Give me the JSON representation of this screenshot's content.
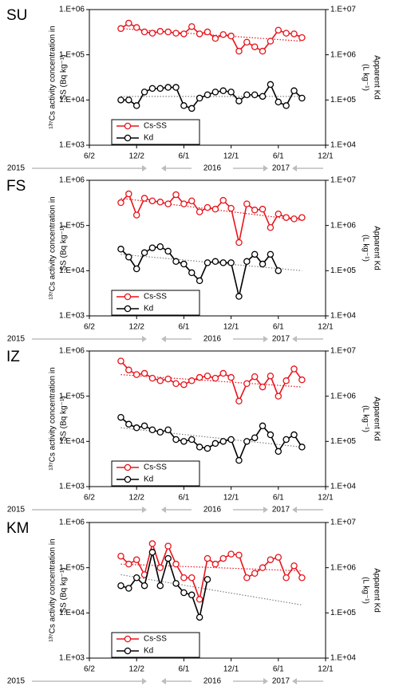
{
  "chart_data": [
    {
      "type": "line",
      "title": "SU",
      "y_label": [
        "¹³⁷Cs activity concentration in",
        "SS (Bq kg⁻¹)"
      ],
      "y2_label": [
        "Apparent Kd",
        "(L kg⁻¹)"
      ],
      "year_labels": [
        "2015",
        "2016",
        "2017"
      ],
      "x": [
        4,
        5,
        6,
        7,
        8,
        9,
        10,
        11,
        12,
        13,
        14,
        15,
        16,
        17,
        18,
        19,
        20,
        21,
        22,
        23,
        24,
        25,
        26,
        27
      ],
      "xlim": [
        0,
        30
      ],
      "xticks": [
        {
          "value": 0,
          "label": "6/2"
        },
        {
          "value": 6,
          "label": "12/2"
        },
        {
          "value": 12,
          "label": "6/1"
        },
        {
          "value": 18,
          "label": "12/1"
        },
        {
          "value": 24,
          "label": "6/1"
        },
        {
          "value": 30,
          "label": "12/1"
        }
      ],
      "log_scale": true,
      "ylim": [
        1000,
        1000000
      ],
      "yticks": [
        {
          "value": 1000,
          "label": "1.E+03"
        },
        {
          "value": 10000,
          "label": "1.E+04"
        },
        {
          "value": 100000,
          "label": "1.E+05"
        },
        {
          "value": 1000000,
          "label": "1.E+06"
        }
      ],
      "y2lim": [
        10000,
        10000000
      ],
      "y2ticks": [
        {
          "value": 10000,
          "label": "1.E+04"
        },
        {
          "value": 100000,
          "label": "1.E+05"
        },
        {
          "value": 1000000,
          "label": "1.E+06"
        },
        {
          "value": 10000000,
          "label": "1.E+07"
        }
      ],
      "legend": "lower left",
      "series": [
        {
          "name": "Cs-SS",
          "color": "#e8141b",
          "values": [
            380000,
            500000,
            400000,
            320000,
            300000,
            330000,
            320000,
            300000,
            290000,
            420000,
            290000,
            320000,
            230000,
            280000,
            260000,
            120000,
            190000,
            150000,
            120000,
            200000,
            350000,
            300000,
            290000,
            240000
          ]
        },
        {
          "name": "Kd",
          "color": "#000000",
          "axis": "y2",
          "values": [
            100000,
            100000,
            75000,
            150000,
            180000,
            180000,
            190000,
            190000,
            75000,
            65000,
            110000,
            130000,
            150000,
            160000,
            150000,
            95000,
            130000,
            130000,
            120000,
            220000,
            90000,
            75000,
            160000,
            110000
          ]
        }
      ],
      "trends": [
        {
          "axis": "y",
          "color": "#e8141b",
          "x": [
            4,
            27
          ],
          "values": [
            380000,
            200000
          ]
        },
        {
          "axis": "y2",
          "color": "#808080",
          "x": [
            4,
            27
          ],
          "values": [
            120000,
            120000
          ]
        }
      ]
    },
    {
      "type": "line",
      "title": "FS",
      "y_label": [
        "¹³⁷Cs activity concentration in",
        "SS (Bq kg⁻¹)"
      ],
      "y2_label": [
        "Apparent Kd",
        "(L kg⁻¹)"
      ],
      "year_labels": [
        "2015",
        "2016",
        "2017"
      ],
      "x": [
        4,
        5,
        6,
        7,
        8,
        9,
        10,
        11,
        12,
        13,
        14,
        15,
        16,
        17,
        18,
        19,
        20,
        21,
        22,
        23,
        24,
        25,
        26,
        27
      ],
      "xlim": [
        0,
        30
      ],
      "xticks": [
        {
          "value": 0,
          "label": "6/2"
        },
        {
          "value": 6,
          "label": "12/2"
        },
        {
          "value": 12,
          "label": "6/1"
        },
        {
          "value": 18,
          "label": "12/1"
        },
        {
          "value": 24,
          "label": "6/1"
        },
        {
          "value": 30,
          "label": "12/1"
        }
      ],
      "log_scale": true,
      "ylim": [
        1000,
        1000000
      ],
      "yticks": [
        {
          "value": 1000,
          "label": "1.E+03"
        },
        {
          "value": 10000,
          "label": "1.E+04"
        },
        {
          "value": 100000,
          "label": "1.E+05"
        },
        {
          "value": 1000000,
          "label": "1.E+06"
        }
      ],
      "y2lim": [
        10000,
        10000000
      ],
      "y2ticks": [
        {
          "value": 10000,
          "label": "1.E+04"
        },
        {
          "value": 100000,
          "label": "1.E+05"
        },
        {
          "value": 1000000,
          "label": "1.E+06"
        },
        {
          "value": 10000000,
          "label": "1.E+07"
        }
      ],
      "legend": "lower left",
      "series": [
        {
          "name": "Cs-SS",
          "color": "#e8141b",
          "values": [
            320000,
            500000,
            170000,
            400000,
            350000,
            330000,
            300000,
            480000,
            300000,
            350000,
            200000,
            250000,
            230000,
            360000,
            240000,
            42000,
            300000,
            220000,
            230000,
            90000,
            180000,
            150000,
            140000,
            150000
          ]
        },
        {
          "name": "Kd",
          "color": "#000000",
          "axis": "y2",
          "values": [
            300000,
            200000,
            110000,
            250000,
            320000,
            340000,
            270000,
            160000,
            140000,
            90000,
            60000,
            150000,
            160000,
            150000,
            150000,
            27000,
            160000,
            230000,
            140000,
            230000,
            100000,
            null,
            null,
            null
          ]
        }
      ],
      "trends": [
        {
          "axis": "y",
          "color": "#e8141b",
          "x": [
            4,
            27
          ],
          "values": [
            400000,
            130000
          ]
        },
        {
          "axis": "y2",
          "color": "#808080",
          "x": [
            4,
            27
          ],
          "values": [
            230000,
            100000
          ]
        }
      ]
    },
    {
      "type": "line",
      "title": "IZ",
      "y_label": [
        "¹³⁷Cs activity concentration in",
        "SS (Bq kg⁻¹)"
      ],
      "y2_label": [
        "Apparent Kd",
        "(L kg⁻¹)"
      ],
      "year_labels": [
        "2015",
        "2016",
        "2017"
      ],
      "x": [
        4,
        5,
        6,
        7,
        8,
        9,
        10,
        11,
        12,
        13,
        14,
        15,
        16,
        17,
        18,
        19,
        20,
        21,
        22,
        23,
        24,
        25,
        26,
        27
      ],
      "xlim": [
        0,
        30
      ],
      "xticks": [
        {
          "value": 0,
          "label": "6/2"
        },
        {
          "value": 6,
          "label": "12/2"
        },
        {
          "value": 12,
          "label": "6/1"
        },
        {
          "value": 18,
          "label": "12/1"
        },
        {
          "value": 24,
          "label": "6/1"
        },
        {
          "value": 30,
          "label": "12/1"
        }
      ],
      "log_scale": true,
      "ylim": [
        1000,
        1000000
      ],
      "yticks": [
        {
          "value": 1000,
          "label": "1.E+03"
        },
        {
          "value": 10000,
          "label": "1.E+04"
        },
        {
          "value": 100000,
          "label": "1.E+05"
        },
        {
          "value": 1000000,
          "label": "1.E+06"
        }
      ],
      "y2lim": [
        10000,
        10000000
      ],
      "y2ticks": [
        {
          "value": 10000,
          "label": "1.E+04"
        },
        {
          "value": 100000,
          "label": "1.E+05"
        },
        {
          "value": 1000000,
          "label": "1.E+06"
        },
        {
          "value": 10000000,
          "label": "1.E+07"
        }
      ],
      "legend": "lower left",
      "series": [
        {
          "name": "Cs-SS",
          "color": "#e8141b",
          "values": [
            600000,
            380000,
            300000,
            320000,
            250000,
            220000,
            240000,
            190000,
            180000,
            220000,
            260000,
            280000,
            250000,
            320000,
            260000,
            78000,
            190000,
            270000,
            160000,
            280000,
            100000,
            220000,
            400000,
            230000
          ]
        },
        {
          "name": "Kd",
          "color": "#000000",
          "axis": "y2",
          "values": [
            340000,
            240000,
            200000,
            220000,
            180000,
            160000,
            180000,
            110000,
            100000,
            110000,
            75000,
            70000,
            90000,
            100000,
            110000,
            38000,
            100000,
            120000,
            220000,
            140000,
            60000,
            110000,
            140000,
            75000
          ]
        }
      ],
      "trends": [
        {
          "axis": "y",
          "color": "#e8141b",
          "x": [
            4,
            27
          ],
          "values": [
            300000,
            160000
          ]
        },
        {
          "axis": "y2",
          "color": "#808080",
          "x": [
            4,
            27
          ],
          "values": [
            200000,
            75000
          ]
        }
      ]
    },
    {
      "type": "line",
      "title": "KM",
      "y_label": [
        "¹³⁷Cs activity concentration in",
        "SS (Bq kg⁻¹)"
      ],
      "y2_label": [
        "Apparent Kd",
        "(L kg⁻¹)"
      ],
      "year_labels": [
        "2015",
        "2016",
        "2017"
      ],
      "x": [
        4,
        5,
        6,
        7,
        8,
        9,
        10,
        11,
        12,
        13,
        14,
        15,
        16,
        17,
        18,
        19,
        20,
        21,
        22,
        23,
        24,
        25,
        26,
        27
      ],
      "xlim": [
        0,
        30
      ],
      "xticks": [
        {
          "value": 0,
          "label": "6/2"
        },
        {
          "value": 6,
          "label": "12/2"
        },
        {
          "value": 12,
          "label": "6/1"
        },
        {
          "value": 18,
          "label": "12/1"
        },
        {
          "value": 24,
          "label": "6/1"
        },
        {
          "value": 30,
          "label": "12/1"
        }
      ],
      "log_scale": true,
      "ylim": [
        1000,
        1000000
      ],
      "yticks": [
        {
          "value": 1000,
          "label": "1.E+03"
        },
        {
          "value": 10000,
          "label": "1.E+04"
        },
        {
          "value": 100000,
          "label": "1.E+05"
        },
        {
          "value": 1000000,
          "label": "1.E+06"
        }
      ],
      "y2lim": [
        10000,
        10000000
      ],
      "y2ticks": [
        {
          "value": 10000,
          "label": "1.E+04"
        },
        {
          "value": 100000,
          "label": "1.E+05"
        },
        {
          "value": 1000000,
          "label": "1.E+06"
        },
        {
          "value": 10000000,
          "label": "1.E+07"
        }
      ],
      "legend": "lower left",
      "series": [
        {
          "name": "Cs-SS",
          "color": "#e8141b",
          "values": [
            180000,
            120000,
            150000,
            70000,
            340000,
            100000,
            300000,
            120000,
            60000,
            60000,
            20000,
            160000,
            120000,
            160000,
            200000,
            190000,
            60000,
            75000,
            100000,
            150000,
            170000,
            60000,
            110000,
            60000
          ]
        },
        {
          "name": "Kd",
          "color": "#000000",
          "axis": "y2",
          "values": [
            400000,
            350000,
            600000,
            400000,
            2200000,
            400000,
            1600000,
            450000,
            280000,
            250000,
            80000,
            550000,
            null,
            null,
            null,
            null,
            null,
            null,
            null,
            null,
            null,
            null,
            null,
            null
          ]
        }
      ],
      "trends": [
        {
          "axis": "y",
          "color": "#e8141b",
          "x": [
            4,
            27
          ],
          "values": [
            120000,
            85000
          ]
        },
        {
          "axis": "y2",
          "color": "#808080",
          "x": [
            4,
            27
          ],
          "values": [
            700000,
            150000
          ]
        }
      ]
    }
  ]
}
